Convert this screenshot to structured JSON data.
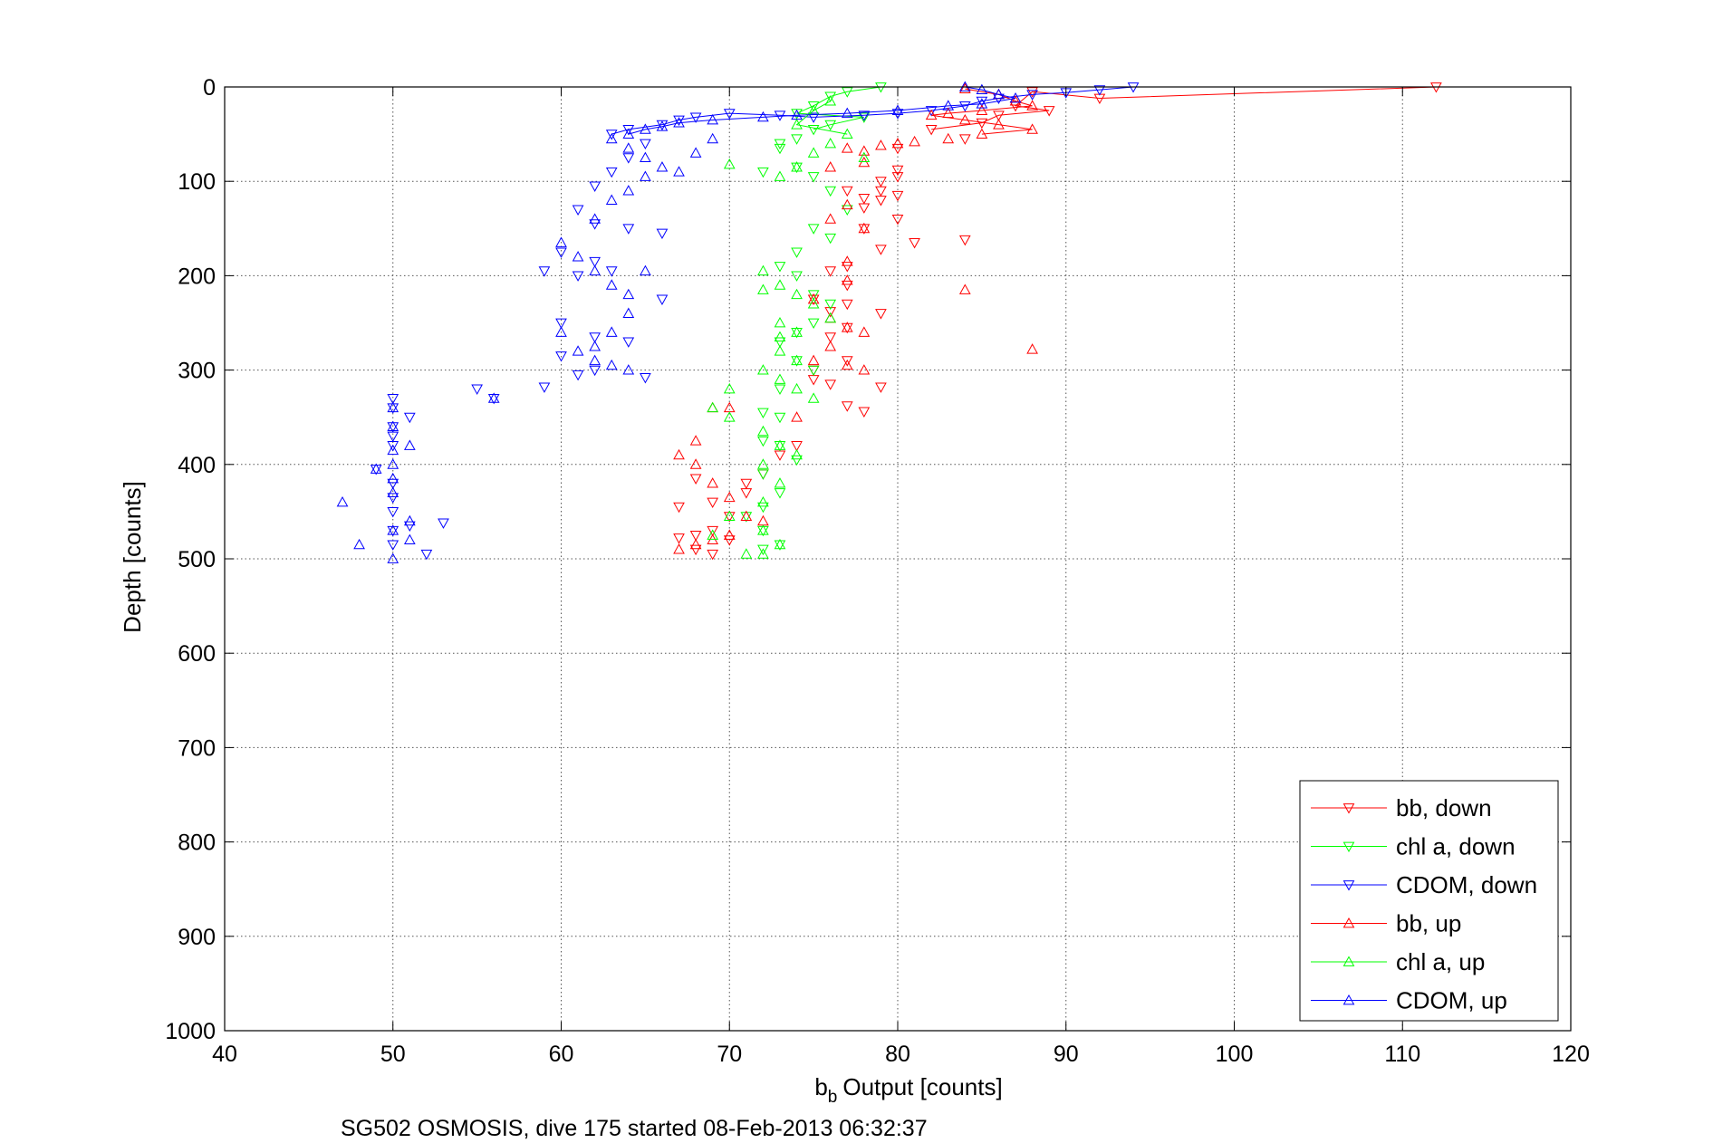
{
  "chart_data": {
    "type": "scatter",
    "title": "",
    "caption": "SG502 OSMOSIS, dive 175 started 08-Feb-2013 06:32:37",
    "xlabel": "Output [counts]",
    "xlabel_symbol": "b",
    "xlabel_subscript": "b",
    "ylabel": "Depth [counts]",
    "xlim": [
      40,
      120
    ],
    "ylim": [
      0,
      1000
    ],
    "y_reversed": true,
    "grid": true,
    "legend_position": "bottom-right",
    "x_ticks": [
      "40",
      "50",
      "60",
      "70",
      "80",
      "90",
      "100",
      "110",
      "120"
    ],
    "y_ticks": [
      "0",
      "100",
      "200",
      "300",
      "400",
      "500",
      "600",
      "700",
      "800",
      "900",
      "1000"
    ],
    "series": [
      {
        "name": "bb, down",
        "color": "#ff0000",
        "marker": "triangle-down",
        "x": [
          112,
          92,
          88,
          87,
          89,
          86,
          85,
          82,
          84,
          80,
          80,
          79,
          79,
          78,
          80,
          80,
          77,
          78,
          79,
          80,
          81,
          79,
          76,
          77,
          77,
          77,
          78,
          76,
          84,
          77,
          76,
          79,
          75,
          77,
          75,
          79,
          75,
          76,
          77,
          78,
          74,
          73,
          72,
          71,
          70,
          69,
          68,
          67,
          68,
          69,
          70,
          71,
          68,
          69,
          67
        ],
        "y": [
          0,
          12,
          5,
          20,
          25,
          30,
          38,
          45,
          55,
          65,
          95,
          100,
          110,
          118,
          115,
          88,
          110,
          128,
          120,
          140,
          165,
          172,
          195,
          210,
          190,
          230,
          150,
          238,
          162,
          255,
          265,
          240,
          225,
          290,
          300,
          318,
          310,
          315,
          338,
          344,
          380,
          390,
          410,
          430,
          455,
          470,
          475,
          478,
          490,
          495,
          480,
          420,
          415,
          440,
          445
        ]
      },
      {
        "name": "chl a, down",
        "color": "#00ff00",
        "marker": "triangle-down",
        "x": [
          79,
          77,
          76,
          75,
          74,
          78,
          76,
          75,
          74,
          73,
          72,
          73,
          74,
          75,
          76,
          77,
          75,
          76,
          74,
          73,
          74,
          75,
          76,
          75,
          74,
          73,
          74,
          75,
          73,
          72,
          73,
          72,
          73,
          74,
          72,
          73,
          72,
          71,
          72,
          73,
          72
        ],
        "y": [
          0,
          5,
          10,
          20,
          28,
          32,
          40,
          45,
          55,
          60,
          90,
          65,
          85,
          95,
          110,
          130,
          150,
          160,
          175,
          190,
          200,
          220,
          230,
          250,
          260,
          270,
          290,
          300,
          320,
          345,
          350,
          375,
          380,
          395,
          410,
          430,
          445,
          455,
          470,
          485,
          490
        ]
      },
      {
        "name": "CDOM, down",
        "color": "#0000ff",
        "marker": "triangle-down",
        "x": [
          94,
          92,
          90,
          88,
          86,
          85,
          84,
          82,
          80,
          78,
          75,
          73,
          70,
          68,
          67,
          66,
          64,
          63,
          65,
          64,
          63,
          62,
          61,
          62,
          64,
          66,
          62,
          63,
          61,
          60,
          59,
          60,
          62,
          64,
          66,
          65,
          62,
          61,
          60,
          59,
          56,
          55,
          50,
          50,
          51,
          50,
          50,
          50,
          49,
          50,
          50,
          50,
          51,
          50,
          52,
          50,
          53
        ],
        "y": [
          0,
          3,
          6,
          8,
          12,
          15,
          20,
          25,
          28,
          30,
          32,
          30,
          28,
          32,
          35,
          40,
          45,
          50,
          60,
          75,
          90,
          105,
          130,
          145,
          150,
          155,
          185,
          195,
          200,
          175,
          195,
          250,
          265,
          270,
          225,
          308,
          300,
          305,
          285,
          318,
          330,
          320,
          330,
          340,
          350,
          360,
          370,
          380,
          405,
          420,
          435,
          450,
          465,
          470,
          495,
          485,
          462
        ]
      },
      {
        "name": "bb, up",
        "color": "#ff0000",
        "marker": "triangle-up",
        "x": [
          84,
          86,
          87,
          88,
          85,
          83,
          82,
          84,
          86,
          88,
          85,
          83,
          81,
          80,
          79,
          77,
          78,
          78,
          76,
          77,
          78,
          76,
          77,
          84,
          77,
          75,
          76,
          77,
          78,
          76,
          75,
          77,
          78,
          88,
          74,
          70,
          69,
          68,
          67,
          68,
          69,
          70,
          71,
          72,
          70,
          69,
          68,
          67
        ],
        "y": [
          2,
          8,
          15,
          20,
          25,
          28,
          30,
          35,
          40,
          45,
          50,
          55,
          58,
          60,
          62,
          65,
          68,
          80,
          85,
          125,
          150,
          140,
          185,
          215,
          205,
          225,
          245,
          255,
          260,
          275,
          290,
          295,
          300,
          278,
          350,
          340,
          340,
          375,
          390,
          400,
          420,
          435,
          455,
          460,
          475,
          480,
          485,
          490
        ]
      },
      {
        "name": "chl a, up",
        "color": "#00ff00",
        "marker": "triangle-up",
        "x": [
          76,
          75,
          74,
          77,
          76,
          75,
          78,
          74,
          73,
          70,
          72,
          73,
          74,
          75,
          76,
          74,
          73,
          72,
          73,
          74,
          75,
          72,
          73,
          74,
          73,
          70,
          69,
          70,
          72,
          73,
          74,
          72,
          73,
          72,
          70,
          69,
          72,
          73,
          72,
          71
        ],
        "y": [
          15,
          25,
          40,
          50,
          60,
          70,
          75,
          85,
          95,
          82,
          195,
          210,
          220,
          230,
          245,
          260,
          280,
          300,
          310,
          320,
          330,
          215,
          250,
          290,
          265,
          320,
          340,
          350,
          365,
          380,
          390,
          400,
          420,
          440,
          455,
          475,
          470,
          485,
          495,
          495
        ]
      },
      {
        "name": "CDOM, up",
        "color": "#0000ff",
        "marker": "triangle-up",
        "x": [
          84,
          85,
          86,
          87,
          85,
          83,
          80,
          77,
          74,
          72,
          69,
          67,
          66,
          65,
          64,
          63,
          64,
          65,
          66,
          67,
          68,
          69,
          65,
          64,
          63,
          62,
          60,
          61,
          62,
          63,
          64,
          65,
          64,
          63,
          62,
          61,
          62,
          63,
          64,
          60,
          56,
          50,
          50,
          50,
          51,
          50,
          50,
          49,
          50,
          47,
          48,
          50,
          51,
          51,
          50
        ],
        "y": [
          0,
          3,
          8,
          12,
          18,
          20,
          25,
          28,
          30,
          32,
          35,
          38,
          42,
          45,
          50,
          55,
          65,
          75,
          85,
          90,
          70,
          55,
          95,
          110,
          120,
          140,
          165,
          180,
          195,
          210,
          220,
          195,
          240,
          260,
          290,
          280,
          275,
          295,
          300,
          260,
          330,
          340,
          360,
          385,
          380,
          400,
          415,
          405,
          430,
          440,
          485,
          470,
          460,
          480,
          500
        ]
      }
    ]
  }
}
